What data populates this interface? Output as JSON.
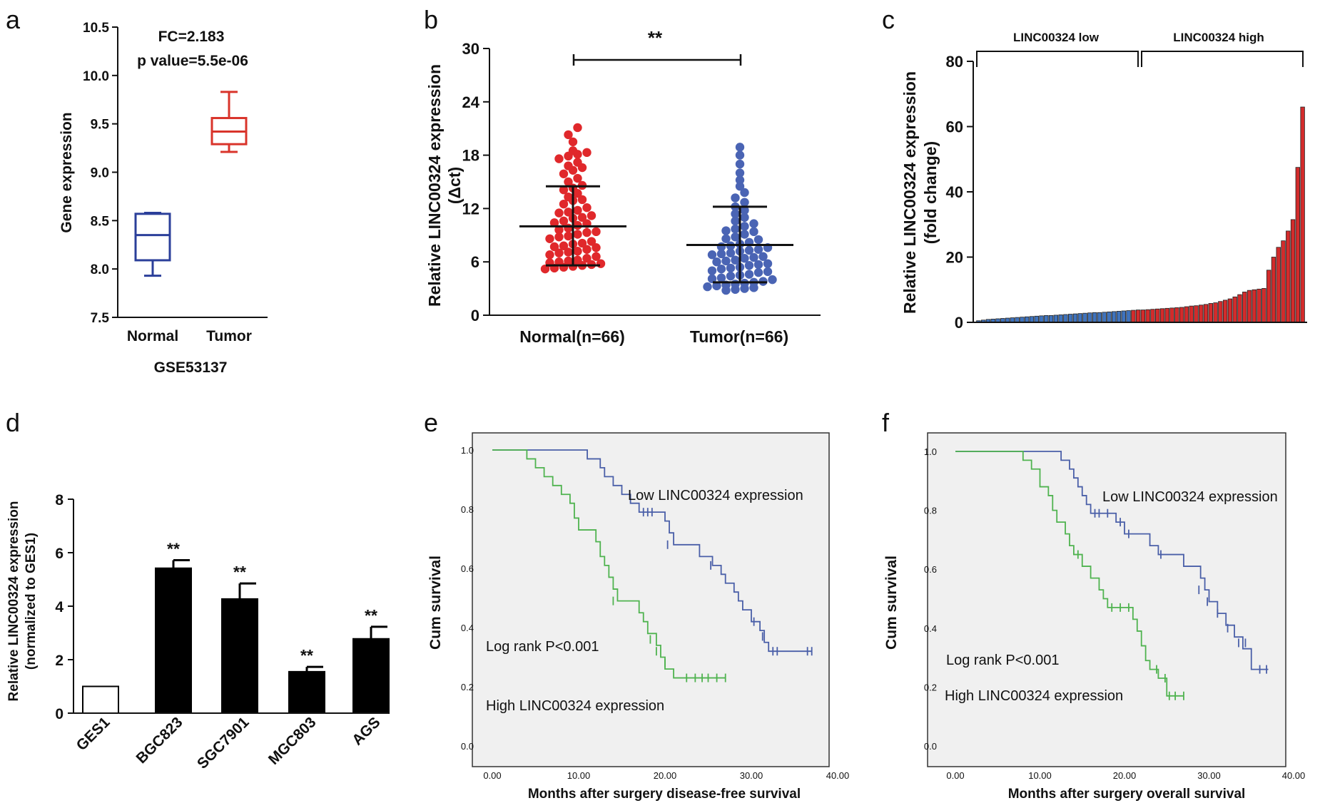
{
  "chart_data": [
    {
      "panel": "a",
      "type": "box",
      "title_lines": [
        "FC=2.183",
        "p value=5.5e-06"
      ],
      "xlabel": "GSE53137",
      "ylabel": "Gene expression",
      "ylim": [
        7.5,
        10.5
      ],
      "yticks": [
        "7.5",
        "8.0",
        "8.5",
        "9.0",
        "9.5",
        "10.0",
        "10.5"
      ],
      "categories": [
        "Normal",
        "Tumor"
      ],
      "boxes": [
        {
          "name": "Normal",
          "min": 7.93,
          "q1": 8.09,
          "median": 8.35,
          "q3": 8.57,
          "max": 8.58,
          "color": "#2b3f9a"
        },
        {
          "name": "Tumor",
          "min": 9.21,
          "q1": 9.29,
          "median": 9.42,
          "q3": 9.56,
          "max": 9.83,
          "color": "#d9342b"
        }
      ]
    },
    {
      "panel": "b",
      "type": "scatter",
      "ylabel_lines": [
        "Relative LINC00324 expression",
        "(Δct)"
      ],
      "ylim": [
        0,
        30
      ],
      "yticks": [
        "0",
        "6",
        "12",
        "18",
        "24",
        "30"
      ],
      "categories": [
        "Normal(n=66)",
        "Tumor(n=66)"
      ],
      "significance": "**",
      "groups": [
        {
          "name": "Normal(n=66)",
          "mean": 10.0,
          "sd_low": 5.6,
          "sd_high": 14.5,
          "color": "#e0282b",
          "values": [
            5.2,
            5.4,
            5.6,
            5.8,
            6.0,
            6.2,
            5.5,
            5.9,
            5.3,
            5.7,
            6.1,
            6.4,
            6.8,
            7.0,
            7.2,
            7.4,
            7.6,
            7.8,
            8.0,
            8.3,
            6.6,
            7.1,
            7.7,
            8.6,
            8.9,
            9.1,
            9.3,
            9.6,
            9.8,
            10.1,
            8.1,
            8.8,
            9.4,
            10.3,
            10.6,
            10.9,
            11.2,
            11.5,
            11.8,
            12.1,
            10.4,
            11.0,
            11.6,
            12.5,
            12.9,
            13.3,
            13.7,
            14.1,
            14.6,
            15.0,
            13.0,
            14.3,
            15.4,
            15.9,
            16.3,
            16.8,
            17.2,
            17.6,
            18.1,
            18.3,
            18.5,
            17.9,
            16.6,
            19.5,
            20.3,
            21.1
          ]
        },
        {
          "name": "Tumor(n=66)",
          "mean": 7.9,
          "sd_low": 3.7,
          "sd_high": 12.2,
          "color": "#4a64b4",
          "values": [
            2.8,
            3.0,
            3.2,
            3.4,
            3.6,
            3.8,
            3.1,
            3.5,
            2.9,
            3.3,
            3.7,
            4.0,
            4.2,
            4.4,
            4.6,
            4.8,
            5.0,
            5.2,
            5.4,
            5.6,
            4.1,
            4.5,
            4.9,
            5.3,
            5.8,
            6.0,
            6.2,
            6.4,
            6.6,
            6.8,
            5.7,
            6.1,
            6.5,
            7.0,
            7.2,
            7.4,
            7.6,
            7.8,
            8.0,
            8.2,
            6.9,
            7.3,
            7.7,
            8.5,
            8.8,
            9.1,
            9.4,
            9.7,
            10.0,
            10.3,
            8.6,
            9.5,
            10.6,
            11.0,
            11.4,
            11.8,
            12.2,
            12.7,
            13.2,
            13.8,
            14.5,
            15.2,
            16.0,
            17.0,
            18.0,
            18.9
          ]
        }
      ]
    },
    {
      "panel": "c",
      "type": "bar",
      "ylabel_lines": [
        "Relative LINC00324 expression",
        "(fold change)"
      ],
      "ylim": [
        0,
        80
      ],
      "yticks": [
        "0",
        "20",
        "40",
        "60",
        "80"
      ],
      "groups": [
        {
          "name": "LINC00324 low",
          "color": "#3f73bd",
          "values": [
            0.5,
            0.7,
            0.9,
            1.0,
            1.1,
            1.2,
            1.3,
            1.4,
            1.5,
            1.6,
            1.7,
            1.8,
            1.9,
            2.0,
            2.1,
            2.1,
            2.2,
            2.3,
            2.4,
            2.5,
            2.6,
            2.7,
            2.8,
            2.9,
            3.0,
            3.0,
            3.1,
            3.2,
            3.3,
            3.4,
            3.5,
            3.6
          ]
        },
        {
          "name": "LINC00324 high",
          "color": "#d32b2b",
          "values": [
            3.7,
            3.8,
            3.8,
            3.9,
            4.0,
            4.1,
            4.2,
            4.3,
            4.4,
            4.5,
            4.6,
            4.8,
            5.0,
            5.1,
            5.3,
            5.5,
            5.8,
            6.0,
            6.4,
            6.8,
            7.2,
            7.8,
            8.5,
            9.3,
            9.8,
            10.0,
            10.2,
            10.4,
            16.0,
            20.0,
            23.0,
            25.0,
            28.0,
            31.5,
            47.5,
            66.0
          ]
        }
      ]
    },
    {
      "panel": "d",
      "type": "bar",
      "ylabel_lines": [
        "Relative LINC00324 expression",
        "(normalized to GES1)"
      ],
      "ylim": [
        0,
        8
      ],
      "yticks": [
        "0",
        "2",
        "4",
        "6",
        "8"
      ],
      "categories": [
        "GES1",
        "BGC823",
        "SGC7901",
        "MGC803",
        "AGS"
      ],
      "values": [
        1.0,
        5.42,
        4.27,
        1.55,
        2.78
      ],
      "errors": [
        0,
        0.3,
        0.58,
        0.18,
        0.45
      ],
      "significance": [
        "",
        "**",
        "**",
        "**",
        "**"
      ]
    },
    {
      "panel": "e",
      "type": "line",
      "xlabel": "Months after surgery disease-free survival",
      "ylabel": "Cum survival",
      "xlim": [
        0,
        40
      ],
      "ylim": [
        0,
        1
      ],
      "xticks": [
        "0.00",
        "10.00",
        "20.00",
        "30.00",
        "40.00"
      ],
      "yticks": [
        "0.0",
        "0.2",
        "0.4",
        "0.6",
        "0.8",
        "1.0"
      ],
      "annotation": "Log rank P<0.001",
      "series": [
        {
          "name": "Low LINC00324 expression",
          "color": "#4a5fa8",
          "steps": [
            [
              0,
              1.0
            ],
            [
              11,
              0.97
            ],
            [
              12.5,
              0.94
            ],
            [
              13,
              0.91
            ],
            [
              14,
              0.88
            ],
            [
              15,
              0.85
            ],
            [
              16,
              0.82
            ],
            [
              17,
              0.79
            ],
            [
              20,
              0.76
            ],
            [
              20.5,
              0.72
            ],
            [
              21,
              0.68
            ],
            [
              24,
              0.64
            ],
            [
              25.5,
              0.61
            ],
            [
              26.5,
              0.58
            ],
            [
              27,
              0.55
            ],
            [
              28,
              0.52
            ],
            [
              28.5,
              0.49
            ],
            [
              29,
              0.46
            ],
            [
              30,
              0.42
            ],
            [
              31,
              0.39
            ],
            [
              31.5,
              0.35
            ],
            [
              32,
              0.32
            ],
            [
              37,
              0.32
            ]
          ],
          "censored": [
            [
              17.5,
              0.79
            ],
            [
              18,
              0.79
            ],
            [
              18.5,
              0.79
            ],
            [
              20.3,
              0.68
            ],
            [
              25.3,
              0.61
            ],
            [
              30.3,
              0.42
            ],
            [
              31.3,
              0.37
            ],
            [
              32.5,
              0.32
            ],
            [
              33,
              0.32
            ],
            [
              36.5,
              0.32
            ],
            [
              37,
              0.32
            ]
          ]
        },
        {
          "name": "High LINC00324 expression",
          "color": "#4fb34f",
          "steps": [
            [
              0,
              1.0
            ],
            [
              4,
              0.97
            ],
            [
              5,
              0.94
            ],
            [
              6,
              0.91
            ],
            [
              7,
              0.88
            ],
            [
              8,
              0.85
            ],
            [
              9,
              0.82
            ],
            [
              9.5,
              0.77
            ],
            [
              10,
              0.73
            ],
            [
              12,
              0.69
            ],
            [
              12.5,
              0.64
            ],
            [
              13,
              0.61
            ],
            [
              13.5,
              0.57
            ],
            [
              14,
              0.53
            ],
            [
              14.5,
              0.49
            ],
            [
              17,
              0.45
            ],
            [
              17.5,
              0.42
            ],
            [
              18,
              0.38
            ],
            [
              19,
              0.34
            ],
            [
              19.5,
              0.3
            ],
            [
              20,
              0.26
            ],
            [
              21,
              0.23
            ],
            [
              27,
              0.23
            ]
          ],
          "censored": [
            [
              14,
              0.49
            ],
            [
              18.3,
              0.36
            ],
            [
              19,
              0.32
            ],
            [
              20,
              0.28
            ],
            [
              22.5,
              0.23
            ],
            [
              23.5,
              0.23
            ],
            [
              24.3,
              0.23
            ],
            [
              25,
              0.23
            ],
            [
              26,
              0.23
            ],
            [
              27,
              0.23
            ]
          ]
        }
      ]
    },
    {
      "panel": "f",
      "type": "line",
      "xlabel": "Months after surgery overall survival",
      "ylabel": "Cum survival",
      "xlim": [
        0,
        40
      ],
      "ylim": [
        0,
        1
      ],
      "xticks": [
        "0.00",
        "10.00",
        "20.00",
        "30.00",
        "40.00"
      ],
      "yticks": [
        "0.0",
        "0.2",
        "0.4",
        "0.6",
        "0.8",
        "1.0"
      ],
      "annotation": "Log rank P<0.001",
      "series": [
        {
          "name": "Low LINC00324 expression",
          "color": "#4a5fa8",
          "steps": [
            [
              0,
              1.0
            ],
            [
              12.5,
              0.97
            ],
            [
              13.5,
              0.94
            ],
            [
              14,
              0.91
            ],
            [
              14.5,
              0.88
            ],
            [
              15,
              0.85
            ],
            [
              15.5,
              0.82
            ],
            [
              16,
              0.79
            ],
            [
              19,
              0.76
            ],
            [
              20,
              0.72
            ],
            [
              23,
              0.68
            ],
            [
              24,
              0.65
            ],
            [
              27,
              0.61
            ],
            [
              29,
              0.57
            ],
            [
              29.5,
              0.53
            ],
            [
              30,
              0.49
            ],
            [
              31,
              0.45
            ],
            [
              32,
              0.41
            ],
            [
              33,
              0.37
            ],
            [
              34,
              0.33
            ],
            [
              35,
              0.26
            ],
            [
              37,
              0.26
            ]
          ],
          "censored": [
            [
              16.5,
              0.79
            ],
            [
              17,
              0.79
            ],
            [
              18,
              0.79
            ],
            [
              19.5,
              0.76
            ],
            [
              20.5,
              0.72
            ],
            [
              24.3,
              0.65
            ],
            [
              28.8,
              0.53
            ],
            [
              29.8,
              0.49
            ],
            [
              31,
              0.45
            ],
            [
              32.2,
              0.4
            ],
            [
              33.5,
              0.35
            ],
            [
              34.3,
              0.35
            ],
            [
              36,
              0.26
            ],
            [
              36.8,
              0.26
            ]
          ]
        },
        {
          "name": "High LINC00324 expression",
          "color": "#4fb34f",
          "steps": [
            [
              0,
              1.0
            ],
            [
              8,
              0.97
            ],
            [
              9,
              0.94
            ],
            [
              10,
              0.88
            ],
            [
              11,
              0.85
            ],
            [
              11.5,
              0.8
            ],
            [
              12,
              0.76
            ],
            [
              13,
              0.72
            ],
            [
              13.5,
              0.68
            ],
            [
              14,
              0.65
            ],
            [
              15,
              0.61
            ],
            [
              16,
              0.57
            ],
            [
              17,
              0.53
            ],
            [
              17.5,
              0.5
            ],
            [
              18,
              0.47
            ],
            [
              21,
              0.43
            ],
            [
              21.5,
              0.39
            ],
            [
              22,
              0.34
            ],
            [
              22.5,
              0.29
            ],
            [
              23,
              0.26
            ],
            [
              24,
              0.23
            ],
            [
              25,
              0.17
            ],
            [
              27,
              0.17
            ]
          ],
          "censored": [
            [
              14.5,
              0.65
            ],
            [
              18.5,
              0.47
            ],
            [
              19.5,
              0.47
            ],
            [
              20.5,
              0.47
            ],
            [
              23.8,
              0.26
            ],
            [
              24.8,
              0.23
            ],
            [
              25.3,
              0.17
            ],
            [
              26,
              0.17
            ],
            [
              27,
              0.17
            ]
          ]
        }
      ]
    }
  ],
  "panel_labels": [
    "a",
    "b",
    "c",
    "d",
    "e",
    "f"
  ]
}
